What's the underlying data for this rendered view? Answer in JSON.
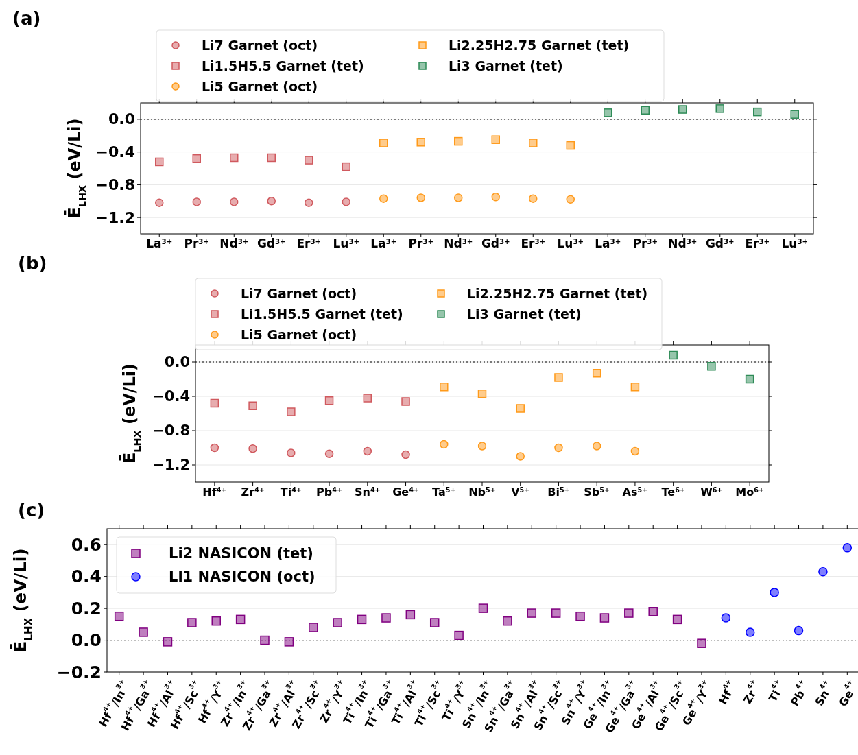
{
  "chart_data": [
    {
      "type": "scatter",
      "title": "(a)",
      "ylabel": "Ē$_{LHX}$ (eV/Li)",
      "categories": [
        "La$^{3+}$",
        "Pr$^{3+}$",
        "Nd$^{3+}$",
        "Gd$^{3+}$",
        "Er$^{3+}$",
        "Lu$^{3+}$",
        "La$^{3+}$",
        "Pr$^{3+}$",
        "Nd$^{3+}$",
        "Gd$^{3+}$",
        "Er$^{3+}$",
        "Lu$^{3+}$",
        "La$^{3+}$",
        "Pr$^{3+}$",
        "Nd$^{3+}$",
        "Gd$^{3+}$",
        "Er$^{3+}$",
        "Lu$^{3+}$"
      ],
      "series": [
        {
          "name": "Li7 Garnet (oct)",
          "color": "#d0595e",
          "marker": "circle",
          "values": [
            -1.02,
            -1.01,
            -1.01,
            -1.0,
            -1.02,
            -1.01,
            null,
            null,
            null,
            null,
            null,
            null,
            null,
            null,
            null,
            null,
            null,
            null
          ]
        },
        {
          "name": "Li1.5H5.5 Garnet (tet)",
          "color": "#d0595e",
          "marker": "square",
          "values": [
            -0.52,
            -0.48,
            -0.47,
            -0.47,
            -0.5,
            -0.58,
            null,
            null,
            null,
            null,
            null,
            null,
            null,
            null,
            null,
            null,
            null,
            null
          ]
        },
        {
          "name": "Li5 Garnet (oct)",
          "color": "#ff9a1a",
          "marker": "circle",
          "values": [
            null,
            null,
            null,
            null,
            null,
            null,
            -0.97,
            -0.96,
            -0.96,
            -0.95,
            -0.97,
            -0.98,
            null,
            null,
            null,
            null,
            null,
            null
          ]
        },
        {
          "name": "Li2.25H2.75 Garnet (tet)",
          "color": "#ff9a1a",
          "marker": "square",
          "values": [
            null,
            null,
            null,
            null,
            null,
            null,
            -0.29,
            -0.28,
            -0.27,
            -0.25,
            -0.29,
            -0.32,
            null,
            null,
            null,
            null,
            null,
            null
          ]
        },
        {
          "name": "Li3 Garnet (tet)",
          "color": "#2e8b57",
          "marker": "square",
          "values": [
            null,
            null,
            null,
            null,
            null,
            null,
            null,
            null,
            null,
            null,
            null,
            null,
            0.08,
            0.11,
            0.12,
            0.13,
            0.09,
            0.06
          ]
        }
      ],
      "ylim": [
        -1.4,
        0.2
      ],
      "yticks": [
        {
          "value": -1.2,
          "label": "−1.2"
        },
        {
          "value": -0.8,
          "label": "−0.8"
        },
        {
          "value": -0.4,
          "label": "−0.4"
        },
        {
          "value": 0,
          "label": "0.0"
        }
      ],
      "grid": "y",
      "legend": "top",
      "ref_lines": [
        {
          "axis": "y",
          "value": 0,
          "line_style": "dotted",
          "color": "#000000"
        }
      ]
    },
    {
      "type": "scatter",
      "title": "(b)",
      "ylabel": "Ē$_{LHX}$ (eV/Li)",
      "categories": [
        "Hf$^{4+}$",
        "Zr$^{4+}$",
        "Ti$^{4+}$",
        "Pb$^{4+}$",
        "Sn$^{4+}$",
        "Ge$^{4+}$",
        "Ta$^{5+}$",
        "Nb$^{5+}$",
        "V$^{5+}$",
        "Bi$^{5+}$",
        "Sb$^{5+}$",
        "As$^{5+}$",
        "Te$^{6+}$",
        "W$^{6+}$",
        "Mo$^{6+}$"
      ],
      "series": [
        {
          "name": "Li7 Garnet (oct)",
          "color": "#d0595e",
          "marker": "circle",
          "values": [
            -1.0,
            -1.01,
            -1.06,
            -1.07,
            -1.04,
            -1.08,
            null,
            null,
            null,
            null,
            null,
            null,
            null,
            null,
            null
          ]
        },
        {
          "name": "Li1.5H5.5 Garnet (tet)",
          "color": "#d0595e",
          "marker": "square",
          "values": [
            -0.48,
            -0.51,
            -0.58,
            -0.45,
            -0.42,
            -0.46,
            null,
            null,
            null,
            null,
            null,
            null,
            null,
            null,
            null
          ]
        },
        {
          "name": "Li5 Garnet (oct)",
          "color": "#ff9a1a",
          "marker": "circle",
          "values": [
            null,
            null,
            null,
            null,
            null,
            null,
            -0.96,
            -0.98,
            -1.1,
            -1.0,
            -0.98,
            -1.04,
            null,
            null,
            null
          ]
        },
        {
          "name": "Li2.25H2.75 Garnet (tet)",
          "color": "#ff9a1a",
          "marker": "square",
          "values": [
            null,
            null,
            null,
            null,
            null,
            null,
            -0.29,
            -0.37,
            -0.54,
            -0.18,
            -0.13,
            -0.29,
            null,
            null,
            null
          ]
        },
        {
          "name": "Li3 Garnet (tet)",
          "color": "#2e8b57",
          "marker": "square",
          "values": [
            null,
            null,
            null,
            null,
            null,
            null,
            null,
            null,
            null,
            null,
            null,
            null,
            0.08,
            -0.05,
            -0.2
          ]
        }
      ],
      "ylim": [
        -1.4,
        0.2
      ],
      "yticks": [
        {
          "value": -1.2,
          "label": "−1.2"
        },
        {
          "value": -0.8,
          "label": "−0.8"
        },
        {
          "value": -0.4,
          "label": "−0.4"
        },
        {
          "value": 0,
          "label": "0.0"
        }
      ],
      "grid": "y",
      "legend": "top",
      "ref_lines": [
        {
          "axis": "y",
          "value": 0,
          "line_style": "dotted",
          "color": "#000000"
        }
      ]
    },
    {
      "type": "scatter",
      "title": "(c)",
      "ylabel": "Ē$_{LHX}$ (eV/Li)",
      "categories": [
        "Hf$^{4+}$/In$^{3+}$",
        "Hf$^{4+}$/Ga$^{3+}$",
        "Hf$^{4+}$/Al$^{3+}$",
        "Hf$^{4+}$/Sc$^{3+}$",
        "Hf$^{4+}$/Y$^{3+}$",
        "Zr$^{4+}$/In$^{3+}$",
        "Zr$^{4+}$/Ga$^{3+}$",
        "Zr$^{4+}$/Al$^{3+}$",
        "Zr$^{4+}$/Sc$^{3+}$",
        "Zr$^{4+}$/Y$^{3+}$",
        "Ti$^{4+}$/In$^{3+}$",
        "Ti$^{4+}$/Ga$^{3+}$",
        "Ti$^{4+}$/Al$^{3+}$",
        "Ti$^{4+}$/Sc$^{3+}$",
        "Ti$^{4+}$/Y$^{3+}$",
        "Sn$^{4+}$/In$^{3+}$",
        "Sn$^{4+}$/Ga$^{3+}$",
        "Sn$^{4+}$/Al$^{3+}$",
        "Sn$^{4+}$/Sc$^{3+}$",
        "Sn$^{4+}$/Y$^{3+}$",
        "Ge$^{4+}$/In$^{3+}$",
        "Ge$^{4+}$/Ga$^{3+}$",
        "Ge$^{4+}$/Al$^{3+}$",
        "Ge$^{4+}$/Sc$^{3+}$",
        "Ge$^{4+}$/Y$^{3+}$",
        "Hf$^{4+}$",
        "Zr$^{4+}$",
        "Ti$^{4+}$",
        "Pb$^{4+}$",
        "Sn$^{4+}$",
        "Ge$^{4+}$"
      ],
      "series": [
        {
          "name": "Li2 NASICON (tet)",
          "color": "#800080",
          "marker": "square",
          "values": [
            0.15,
            0.05,
            -0.01,
            0.11,
            0.12,
            0.13,
            0.0,
            -0.01,
            0.08,
            0.11,
            0.13,
            0.14,
            0.16,
            0.11,
            0.03,
            0.2,
            0.12,
            0.17,
            0.17,
            0.15,
            0.14,
            0.17,
            0.18,
            0.13,
            -0.02,
            null,
            null,
            null,
            null,
            null,
            null
          ]
        },
        {
          "name": "Li1 NASICON (oct)",
          "color": "#0000ff",
          "marker": "circle",
          "values": [
            null,
            null,
            null,
            null,
            null,
            null,
            null,
            null,
            null,
            null,
            null,
            null,
            null,
            null,
            null,
            null,
            null,
            null,
            null,
            null,
            null,
            null,
            null,
            null,
            null,
            0.14,
            0.05,
            0.3,
            0.06,
            0.43,
            0.58
          ]
        }
      ],
      "ylim": [
        -0.2,
        0.7
      ],
      "yticks": [
        {
          "value": -0.2,
          "label": "−0.2"
        },
        {
          "value": 0,
          "label": "0.0"
        },
        0.2,
        0.4,
        0.6
      ],
      "grid": "y",
      "legend": "top left",
      "ref_lines": [
        {
          "axis": "y",
          "value": 0,
          "line_style": "dotted",
          "color": "#000000"
        }
      ]
    }
  ]
}
